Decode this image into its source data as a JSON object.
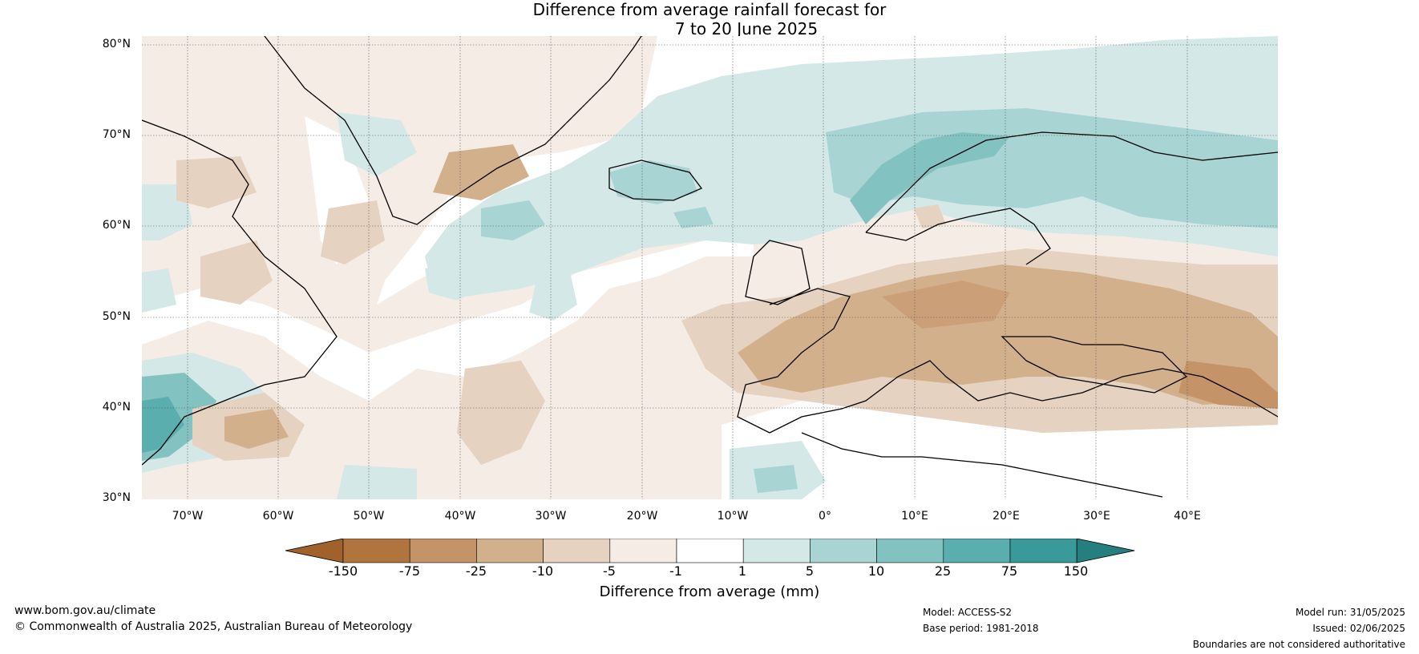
{
  "title": {
    "line1": "Difference from average rainfall forecast for",
    "line2": "7 to 20 June 2025"
  },
  "map": {
    "lat_ticks": [
      "80°N",
      "70°N",
      "60°N",
      "50°N",
      "40°N",
      "30°N"
    ],
    "lon_ticks": [
      "70°W",
      "60°W",
      "50°W",
      "40°W",
      "30°W",
      "20°W",
      "10°W",
      "0°",
      "10°E",
      "20°E",
      "30°E",
      "40°E"
    ],
    "extent": {
      "lon_min": -75,
      "lon_max": 50,
      "lat_min": 30,
      "lat_max": 81
    }
  },
  "colorbar": {
    "title": "Difference from average (mm)",
    "ticks": [
      "-150",
      "-75",
      "-25",
      "-10",
      "-5",
      "-1",
      "1",
      "5",
      "10",
      "25",
      "75",
      "150"
    ],
    "colors": [
      "#a0622a",
      "#b0743f",
      "#c49468",
      "#d3b08c",
      "#e5d2c0",
      "#f4ece5",
      "#ffffff",
      "#d4e8e8",
      "#a8d4d4",
      "#82c2c1",
      "#5aaeae",
      "#3a9a9a",
      "#267f7f"
    ]
  },
  "footer": {
    "website": "www.bom.gov.au/climate",
    "copyright": "© Commonwealth of Australia 2025, Australian Bureau of Meteorology",
    "model": "Model: ACCESS-S2",
    "base_period": "Base period: 1981-2018",
    "model_run": "Model run: 31/05/2025",
    "issued": "Issued: 02/06/2025",
    "disclaimer": "Boundaries are not considered authoritative"
  }
}
